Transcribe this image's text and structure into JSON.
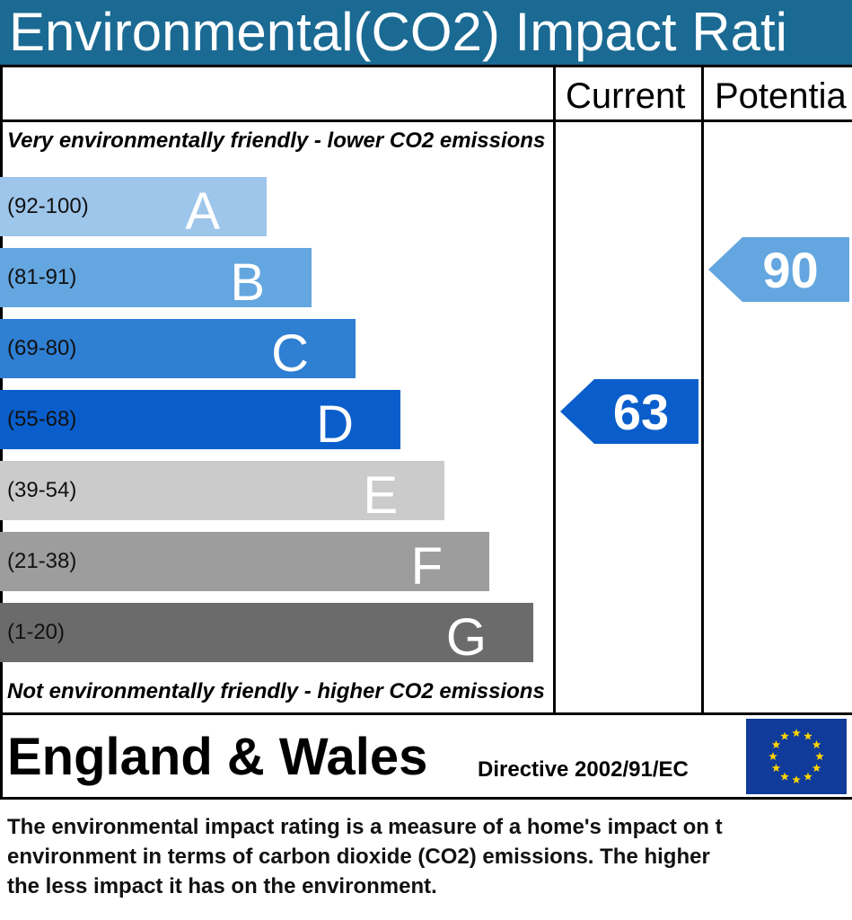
{
  "title": "Environmental(CO2) Impact Rati",
  "columns": {
    "current": "Current",
    "potential": "Potentia"
  },
  "top_note": "Very environmentally friendly - lower CO2 emissions",
  "bottom_note": "Not environmentally friendly - higher CO2 emissions",
  "footer": {
    "region": "England & Wales",
    "directive": "Directive 2002/91/EC",
    "flag": "eu-flag-icon"
  },
  "caption": [
    "The environmental impact rating is a measure of a home's impact on t",
    "environment in terms of carbon dioxide (CO2) emissions. The higher",
    "the less impact it has on the environment."
  ],
  "chart_data": {
    "type": "bar",
    "bands": [
      {
        "letter": "A",
        "range": "(92-100)",
        "color": "#9ec5ea"
      },
      {
        "letter": "B",
        "range": "(81-91)",
        "color": "#64a6e0"
      },
      {
        "letter": "C",
        "range": "(69-80)",
        "color": "#2f7fd3"
      },
      {
        "letter": "D",
        "range": "(55-68)",
        "color": "#0a5ecb"
      },
      {
        "letter": "E",
        "range": "(39-54)",
        "color": "#cbcbcb"
      },
      {
        "letter": "F",
        "range": "(21-38)",
        "color": "#9d9d9d"
      },
      {
        "letter": "G",
        "range": "(1-20)",
        "color": "#6b6b6b"
      }
    ],
    "current": {
      "value": 63,
      "band": "D",
      "color": "#0a5ecb"
    },
    "potential": {
      "value": 90,
      "band": "B",
      "color": "#64a6e0"
    }
  }
}
